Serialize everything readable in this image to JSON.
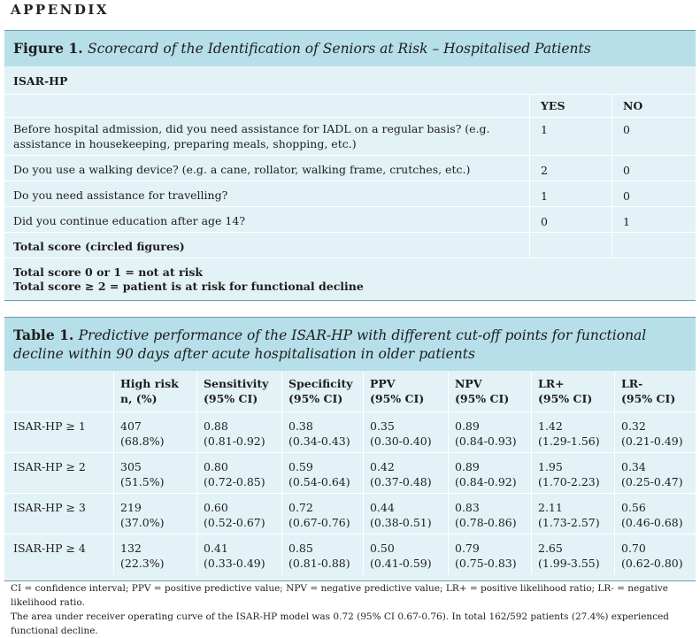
{
  "appendix": "APPENDIX",
  "figure": {
    "title_prefix": "Figure 1.",
    "title_text": "Scorecard of the Identification of Seniors at Risk – Hospitalised Patients",
    "section_label": "ISAR-HP",
    "col_yes": "YES",
    "col_no": "NO",
    "questions": [
      {
        "text": "Before hospital admission, did you need assistance for IADL on a regular basis? (e.g. assistance in housekeeping, preparing meals, shopping, etc.)",
        "yes": "1",
        "no": "0"
      },
      {
        "text": "Do you use a walking device? (e.g. a cane, rollator, walking frame, crutches, etc.)",
        "yes": "2",
        "no": "0"
      },
      {
        "text": "Do you need assistance for travelling?",
        "yes": "1",
        "no": "0"
      },
      {
        "text": "Did you continue education after age 14?",
        "yes": "0",
        "no": "1"
      }
    ],
    "total_label": "Total score (circled figures)",
    "risk_line1": "Total score 0 or 1 = not at risk",
    "risk_line2": "Total score ≥ 2 = patient is at risk for functional decline"
  },
  "table": {
    "title_prefix": "Table 1.",
    "title_text": "Predictive performance of the ISAR-HP with different cut-off points for functional decline within 90 days after acute hospitalisation in older patients",
    "headers": [
      {
        "l1": "High risk",
        "l2": "n, (%)"
      },
      {
        "l1": "Sensitivity",
        "l2": "(95% CI)"
      },
      {
        "l1": "Specificity",
        "l2": "(95% CI)"
      },
      {
        "l1": "PPV",
        "l2": "(95% CI)"
      },
      {
        "l1": "NPV",
        "l2": "(95% CI)"
      },
      {
        "l1": "LR+",
        "l2": "(95% CI)"
      },
      {
        "l1": "LR-",
        "l2": "(95% CI)"
      }
    ],
    "rows": [
      {
        "label": "ISAR-HP ≥ 1",
        "cells": [
          [
            "407",
            "(68.8%)"
          ],
          [
            "0.88",
            "(0.81-0.92)"
          ],
          [
            "0.38",
            "(0.34-0.43)"
          ],
          [
            "0.35",
            "(0.30-0.40)"
          ],
          [
            "0.89",
            "(0.84-0.93)"
          ],
          [
            "1.42",
            "(1.29-1.56)"
          ],
          [
            "0.32",
            "(0.21-0.49)"
          ]
        ]
      },
      {
        "label": "ISAR-HP ≥ 2",
        "cells": [
          [
            "305",
            "(51.5%)"
          ],
          [
            "0.80",
            "(0.72-0.85)"
          ],
          [
            "0.59",
            "(0.54-0.64)"
          ],
          [
            "0.42",
            "(0.37-0.48)"
          ],
          [
            "0.89",
            "(0.84-0.92)"
          ],
          [
            "1.95",
            "(1.70-2.23)"
          ],
          [
            "0.34",
            "(0.25-0.47)"
          ]
        ]
      },
      {
        "label": "ISAR-HP ≥ 3",
        "cells": [
          [
            "219",
            "(37.0%)"
          ],
          [
            "0.60",
            "(0.52-0.67)"
          ],
          [
            "0.72",
            "(0.67-0.76)"
          ],
          [
            "0.44",
            "(0.38-0.51)"
          ],
          [
            "0.83",
            "(0.78-0.86)"
          ],
          [
            "2.11",
            "(1.73-2.57)"
          ],
          [
            "0.56",
            "(0.46-0.68)"
          ]
        ]
      },
      {
        "label": "ISAR-HP ≥ 4",
        "cells": [
          [
            "132",
            "(22.3%)"
          ],
          [
            "0.41",
            "(0.33-0.49)"
          ],
          [
            "0.85",
            "(0.81-0.88)"
          ],
          [
            "0.50",
            "(0.41-0.59)"
          ],
          [
            "0.79",
            "(0.75-0.83)"
          ],
          [
            "2.65",
            "(1.99-3.55)"
          ],
          [
            "0.70",
            "(0.62-0.80)"
          ]
        ]
      }
    ]
  },
  "footnote": {
    "line1": "CI = confidence interval; PPV = positive predictive value; NPV = negative predictive value; LR+ = positive likelihood ratio; LR- = negative likelihood ratio.",
    "line2": "The area under receiver operating curve of the ISAR-HP model was 0.72 (95% CI 0.67-0.76). In total 162/592 patients (27.4%) experienced functional decline."
  },
  "colors": {
    "title_band": "#b7dfe9",
    "panel": "#e3f2f6",
    "rule": "#6a9aa8"
  }
}
